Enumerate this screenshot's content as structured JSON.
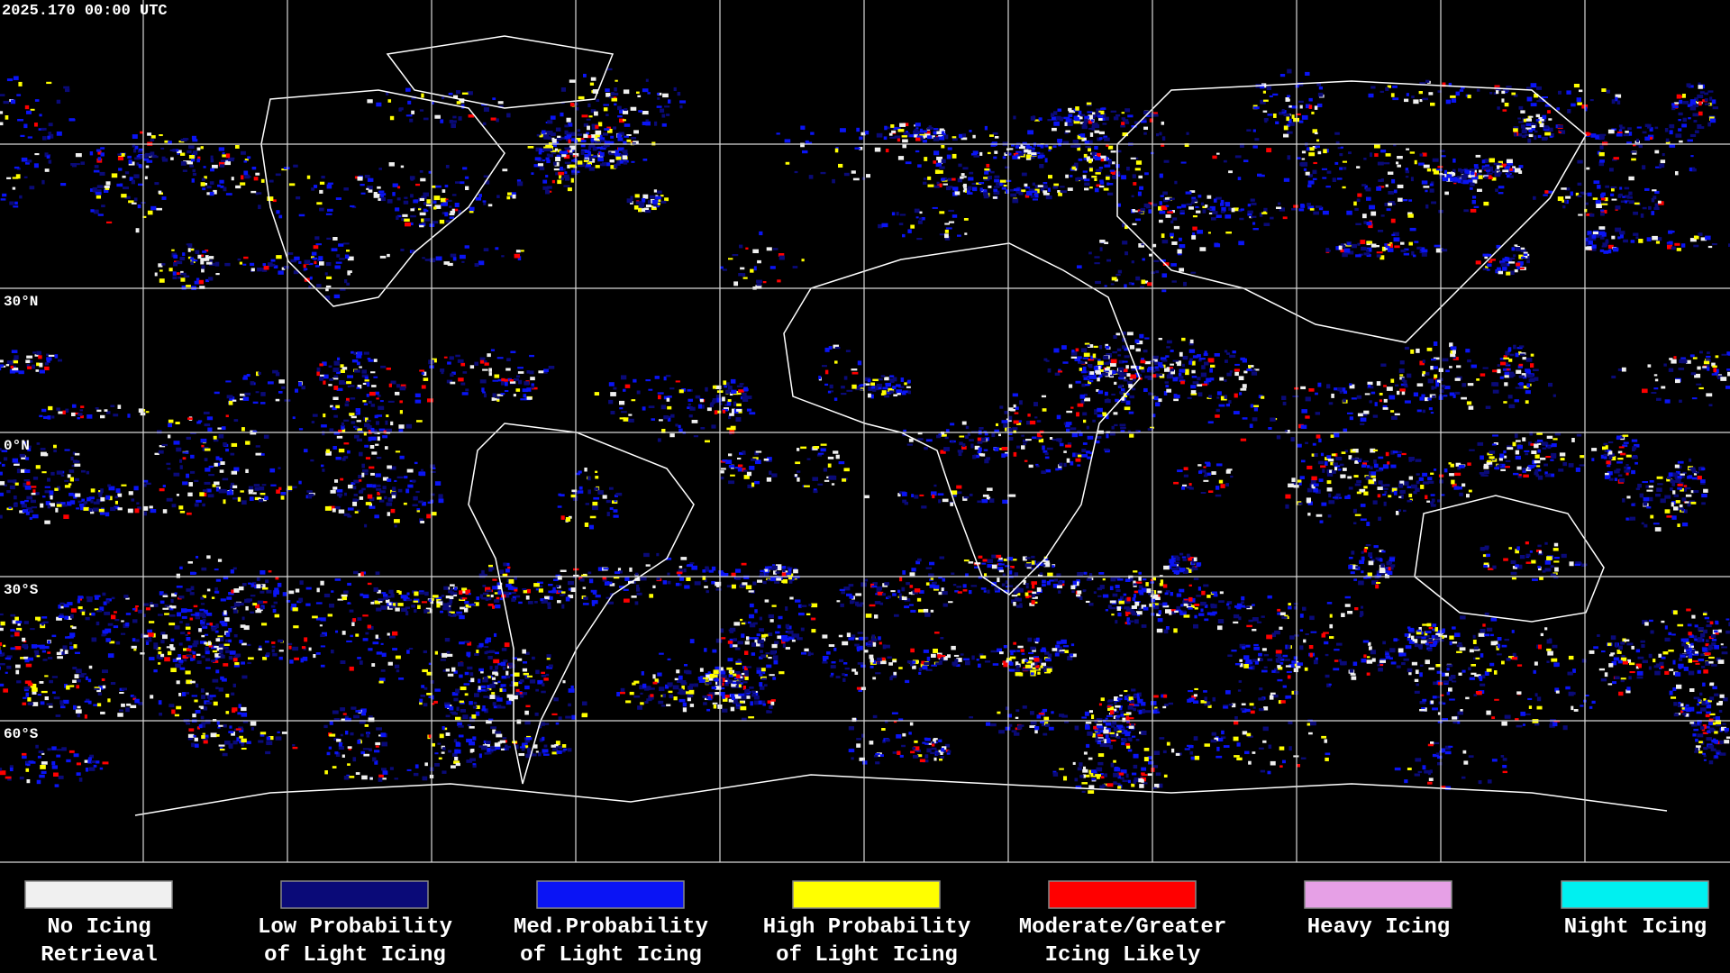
{
  "timestamp": "2025.170 00:00 UTC",
  "latitude_labels": [
    "30°N",
    "0°N",
    "30°S",
    "60°S"
  ],
  "legend": [
    {
      "label_lines": [
        "No Icing",
        "Retrieval"
      ],
      "color": "#f0f0f0"
    },
    {
      "label_lines": [
        "Low Probability",
        "of Light Icing"
      ],
      "color": "#0a0a78"
    },
    {
      "label_lines": [
        "Med.Probability",
        "of Light Icing"
      ],
      "color": "#0a14f5"
    },
    {
      "label_lines": [
        "High Probability",
        "of Light Icing"
      ],
      "color": "#ffff00"
    },
    {
      "label_lines": [
        "Moderate/Greater",
        "Icing Likely"
      ],
      "color": "#ff0000"
    },
    {
      "label_lines": [
        "Heavy Icing"
      ],
      "color": "#e6a0e6"
    },
    {
      "label_lines": [
        "Night Icing"
      ],
      "color": "#00f0f0"
    }
  ]
}
